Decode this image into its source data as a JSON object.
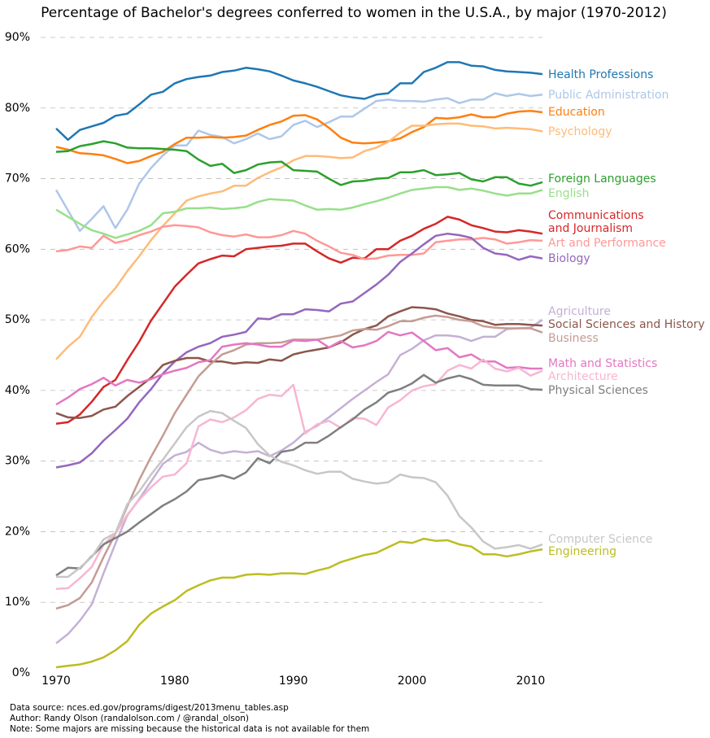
{
  "chart_data": {
    "type": "line",
    "title": "Percentage of Bachelor's degrees conferred to women in the U.S.A., by major (1970-2012)",
    "x": [
      1970,
      1971,
      1972,
      1973,
      1974,
      1975,
      1976,
      1977,
      1978,
      1979,
      1980,
      1981,
      1982,
      1983,
      1984,
      1985,
      1986,
      1987,
      1988,
      1989,
      1990,
      1991,
      1992,
      1993,
      1994,
      1995,
      1996,
      1997,
      1998,
      1999,
      2000,
      2001,
      2002,
      2003,
      2004,
      2005,
      2006,
      2007,
      2008,
      2009,
      2010,
      2011
    ],
    "xlim": [
      1970,
      2011
    ],
    "xticks": [
      1970,
      1980,
      1990,
      2000,
      2010
    ],
    "ylim": [
      0,
      90
    ],
    "yticks": [
      {
        "value": 0,
        "label": "0%"
      },
      {
        "value": 10,
        "label": "10%"
      },
      {
        "value": 20,
        "label": "20%"
      },
      {
        "value": 30,
        "label": "30%"
      },
      {
        "value": 40,
        "label": "40%"
      },
      {
        "value": 50,
        "label": "50%"
      },
      {
        "value": 60,
        "label": "60%"
      },
      {
        "value": 70,
        "label": "70%"
      },
      {
        "value": 80,
        "label": "80%"
      },
      {
        "value": 90,
        "label": "90%"
      }
    ],
    "grid": true,
    "series": [
      {
        "name": "Health Professions",
        "color": "#1f77b4",
        "values": [
          77.1,
          75.5,
          76.9,
          77.4,
          77.9,
          78.9,
          79.2,
          80.5,
          81.9,
          82.3,
          83.5,
          84.1,
          84.4,
          84.6,
          85.1,
          85.3,
          85.7,
          85.5,
          85.2,
          84.6,
          83.9,
          83.5,
          83.0,
          82.4,
          81.8,
          81.5,
          81.3,
          81.9,
          82.1,
          83.5,
          83.5,
          85.1,
          85.7,
          86.5,
          86.5,
          86.0,
          85.9,
          85.4,
          85.2,
          85.1,
          85.0,
          84.8
        ]
      },
      {
        "name": "Public Administration",
        "color": "#aec7e8",
        "values": [
          68.4,
          65.5,
          62.6,
          64.3,
          66.1,
          63.0,
          65.6,
          69.3,
          71.5,
          73.3,
          74.7,
          74.7,
          76.8,
          76.2,
          75.9,
          75.0,
          75.6,
          76.4,
          75.6,
          76.0,
          77.6,
          78.2,
          77.3,
          78.0,
          78.8,
          78.8,
          79.9,
          81.0,
          81.2,
          81.0,
          81.0,
          80.9,
          81.2,
          81.4,
          80.7,
          81.2,
          81.2,
          82.1,
          81.7,
          82.0,
          81.7,
          81.9
        ]
      },
      {
        "name": "Education",
        "color": "#ff7f0e",
        "values": [
          74.5,
          74.1,
          73.6,
          73.5,
          73.3,
          72.8,
          72.2,
          72.5,
          73.2,
          73.8,
          74.9,
          75.8,
          75.8,
          75.9,
          75.8,
          75.9,
          76.1,
          76.9,
          77.6,
          78.1,
          78.9,
          79.0,
          78.4,
          77.2,
          75.8,
          75.1,
          75.0,
          75.1,
          75.3,
          75.7,
          76.6,
          77.3,
          78.6,
          78.5,
          78.7,
          79.1,
          78.7,
          78.7,
          79.2,
          79.5,
          79.6,
          79.4
        ]
      },
      {
        "name": "Psychology",
        "color": "#ffbb78",
        "values": [
          44.4,
          46.2,
          47.6,
          50.4,
          52.6,
          54.5,
          56.9,
          59.0,
          61.3,
          63.3,
          65.1,
          66.9,
          67.5,
          67.9,
          68.2,
          69.0,
          69.0,
          70.1,
          70.9,
          71.6,
          72.6,
          73.2,
          73.2,
          73.1,
          72.9,
          73.0,
          73.9,
          74.4,
          75.2,
          76.5,
          77.5,
          77.5,
          77.7,
          77.8,
          77.8,
          77.5,
          77.4,
          77.1,
          77.2,
          77.1,
          77.0,
          76.7
        ]
      },
      {
        "name": "Foreign Languages",
        "color": "#2ca02c",
        "values": [
          73.8,
          73.9,
          74.6,
          74.9,
          75.3,
          75.0,
          74.4,
          74.3,
          74.3,
          74.2,
          74.1,
          73.9,
          72.7,
          71.8,
          72.1,
          70.8,
          71.2,
          72.0,
          72.3,
          72.4,
          71.2,
          71.1,
          71.0,
          70.0,
          69.1,
          69.6,
          69.7,
          70.0,
          70.1,
          70.9,
          70.9,
          71.2,
          70.5,
          70.6,
          70.8,
          69.9,
          69.6,
          70.2,
          70.2,
          69.3,
          69.0,
          69.5
        ]
      },
      {
        "name": "English",
        "color": "#98df8a",
        "values": [
          65.6,
          64.6,
          63.6,
          62.7,
          62.2,
          61.6,
          62.1,
          62.6,
          63.4,
          65.1,
          65.3,
          65.8,
          65.8,
          65.9,
          65.7,
          65.8,
          66.0,
          66.7,
          67.1,
          67.0,
          66.9,
          66.2,
          65.6,
          65.7,
          65.6,
          65.9,
          66.4,
          66.8,
          67.3,
          67.9,
          68.4,
          68.6,
          68.8,
          68.8,
          68.4,
          68.6,
          68.3,
          67.9,
          67.6,
          67.9,
          67.9,
          68.4
        ]
      },
      {
        "name": "Communications and Journalism",
        "color": "#d62728",
        "values": [
          35.3,
          35.5,
          36.6,
          38.4,
          40.5,
          41.5,
          44.3,
          46.9,
          49.9,
          52.3,
          54.7,
          56.4,
          58.0,
          58.6,
          59.1,
          59.0,
          60.0,
          60.2,
          60.4,
          60.5,
          60.8,
          60.8,
          59.7,
          58.7,
          58.1,
          58.8,
          58.7,
          60.0,
          60.0,
          61.2,
          61.9,
          62.9,
          63.6,
          64.6,
          64.2,
          63.4,
          63.0,
          62.5,
          62.4,
          62.7,
          62.5,
          62.2
        ]
      },
      {
        "name": "Art and Performance",
        "color": "#ff9896",
        "values": [
          59.7,
          59.9,
          60.4,
          60.2,
          61.9,
          60.9,
          61.3,
          62.0,
          62.5,
          63.2,
          63.4,
          63.3,
          63.1,
          62.4,
          62.0,
          61.8,
          62.1,
          61.7,
          61.7,
          62.0,
          62.6,
          62.2,
          61.2,
          60.4,
          59.5,
          59.2,
          58.6,
          58.7,
          59.1,
          59.2,
          59.2,
          59.4,
          61.0,
          61.2,
          61.4,
          61.4,
          61.6,
          61.4,
          60.8,
          61.0,
          61.3,
          61.2
        ]
      },
      {
        "name": "Biology",
        "color": "#9467bd",
        "values": [
          29.1,
          29.4,
          29.8,
          31.1,
          32.9,
          34.4,
          36.0,
          38.3,
          40.2,
          42.4,
          44.1,
          45.4,
          46.2,
          46.7,
          47.6,
          47.9,
          48.3,
          50.2,
          50.1,
          50.8,
          50.8,
          51.5,
          51.4,
          51.2,
          52.3,
          52.6,
          53.8,
          55.0,
          56.4,
          58.2,
          59.4,
          60.7,
          61.9,
          62.2,
          62.0,
          61.6,
          60.2,
          59.4,
          59.2,
          58.5,
          59.0,
          58.7
        ]
      },
      {
        "name": "Agriculture",
        "color": "#c5b0d5",
        "values": [
          4.2,
          5.5,
          7.4,
          9.7,
          14.1,
          18.3,
          22.3,
          24.6,
          27.1,
          29.6,
          30.8,
          31.3,
          32.6,
          31.6,
          31.1,
          31.4,
          31.2,
          31.4,
          30.7,
          31.5,
          32.6,
          34.1,
          35.0,
          36.2,
          37.5,
          38.8,
          40.0,
          41.2,
          42.3,
          45.0,
          45.9,
          47.1,
          47.8,
          47.8,
          47.6,
          47.0,
          47.6,
          47.6,
          48.7,
          48.8,
          48.9,
          50.0
        ]
      },
      {
        "name": "Social Sciences and History",
        "color": "#8c564b",
        "values": [
          36.8,
          36.2,
          36.1,
          36.4,
          37.3,
          37.7,
          39.2,
          40.5,
          41.8,
          43.6,
          44.2,
          44.6,
          44.6,
          44.1,
          44.1,
          43.8,
          44.0,
          43.9,
          44.4,
          44.2,
          45.1,
          45.5,
          45.8,
          46.1,
          46.8,
          47.9,
          48.7,
          49.2,
          50.5,
          51.2,
          51.8,
          51.7,
          51.5,
          50.9,
          50.5,
          50.0,
          49.8,
          49.3,
          49.4,
          49.4,
          49.3,
          49.2
        ]
      },
      {
        "name": "Business",
        "color": "#c49c94",
        "values": [
          9.1,
          9.6,
          10.6,
          12.8,
          16.4,
          19.7,
          23.6,
          27.3,
          30.6,
          33.6,
          36.8,
          39.4,
          42.0,
          43.7,
          45.1,
          45.7,
          46.5,
          46.7,
          46.7,
          46.8,
          47.2,
          47.2,
          47.2,
          47.5,
          47.8,
          48.5,
          48.7,
          48.6,
          49.1,
          49.8,
          49.8,
          50.3,
          50.6,
          50.4,
          50.0,
          49.8,
          49.1,
          48.9,
          48.8,
          48.8,
          48.8,
          48.2
        ]
      },
      {
        "name": "Math and Statistics",
        "color": "#e377c2",
        "values": [
          38.0,
          39.0,
          40.2,
          40.9,
          41.8,
          40.7,
          41.5,
          41.1,
          41.6,
          42.3,
          42.8,
          43.2,
          44.0,
          44.3,
          46.2,
          46.5,
          46.7,
          46.5,
          46.2,
          46.2,
          47.1,
          47.0,
          47.2,
          46.1,
          47.0,
          46.1,
          46.4,
          47.0,
          48.3,
          47.8,
          48.2,
          47.0,
          45.7,
          46.0,
          44.7,
          45.1,
          44.1,
          44.1,
          43.2,
          43.3,
          43.1,
          43.1
        ]
      },
      {
        "name": "Architecture",
        "color": "#f7b6d2",
        "values": [
          11.9,
          12.0,
          13.4,
          15.0,
          18.2,
          19.7,
          22.4,
          24.5,
          26.3,
          27.8,
          28.1,
          29.7,
          34.9,
          35.9,
          35.5,
          36.2,
          37.2,
          38.8,
          39.4,
          39.2,
          40.8,
          33.9,
          35.2,
          35.7,
          34.7,
          36.1,
          36.0,
          35.1,
          37.6,
          38.6,
          40.0,
          40.6,
          40.9,
          42.8,
          43.6,
          43.1,
          44.4,
          43.1,
          42.7,
          43.2,
          42.1,
          42.8
        ]
      },
      {
        "name": "Physical Sciences",
        "color": "#7f7f7f",
        "values": [
          13.8,
          14.9,
          14.8,
          16.5,
          18.2,
          19.1,
          20.0,
          21.3,
          22.5,
          23.7,
          24.6,
          25.7,
          27.3,
          27.6,
          28.0,
          27.5,
          28.4,
          30.4,
          29.7,
          31.3,
          31.6,
          32.6,
          32.6,
          33.6,
          34.8,
          35.9,
          37.3,
          38.3,
          39.7,
          40.2,
          41.0,
          42.2,
          41.1,
          41.7,
          42.1,
          41.6,
          40.8,
          40.7,
          40.7,
          40.7,
          40.2,
          40.1
        ]
      },
      {
        "name": "Computer Science",
        "color": "#c7c7c7",
        "values": [
          13.6,
          13.6,
          14.9,
          16.4,
          18.9,
          19.8,
          23.9,
          25.7,
          28.1,
          30.2,
          32.5,
          34.8,
          36.3,
          37.1,
          36.8,
          35.7,
          34.7,
          32.4,
          30.8,
          29.9,
          29.4,
          28.7,
          28.2,
          28.5,
          28.5,
          27.5,
          27.1,
          26.8,
          27.0,
          28.1,
          27.7,
          27.6,
          27.0,
          25.1,
          22.2,
          20.6,
          18.6,
          17.6,
          17.8,
          18.1,
          17.6,
          18.2
        ]
      },
      {
        "name": "Engineering",
        "color": "#bcbd22",
        "values": [
          0.8,
          1.0,
          1.2,
          1.6,
          2.2,
          3.2,
          4.5,
          6.8,
          8.4,
          9.4,
          10.3,
          11.6,
          12.4,
          13.1,
          13.5,
          13.5,
          13.9,
          14.0,
          13.9,
          14.1,
          14.1,
          14.0,
          14.5,
          14.9,
          15.7,
          16.2,
          16.7,
          17.0,
          17.8,
          18.6,
          18.4,
          19.0,
          18.7,
          18.8,
          18.2,
          17.9,
          16.8,
          16.8,
          16.5,
          16.8,
          17.2,
          17.5
        ]
      }
    ],
    "footnotes": [
      "Data source: nces.ed.gov/programs/digest/2013menu_tables.asp",
      "Author: Randy Olson (randalolson.com / @randal_olson)",
      "Note: Some majors are missing because the historical data is not available for them"
    ]
  }
}
